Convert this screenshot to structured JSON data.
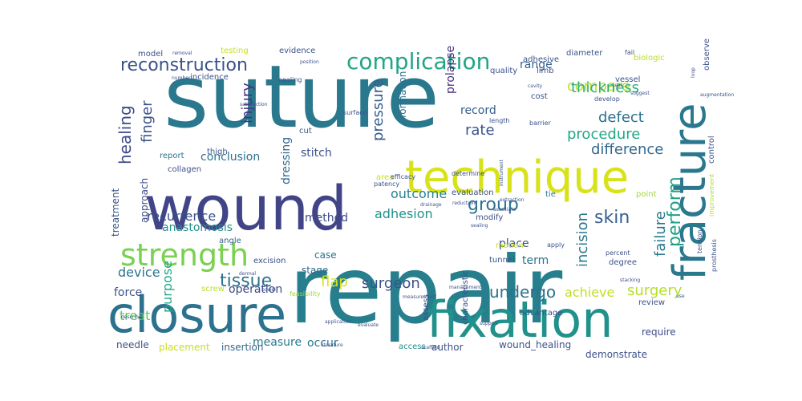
{
  "word_cloud": {
    "palette": [
      "#440154",
      "#46327e",
      "#365c8d",
      "#277f8e",
      "#1fa187",
      "#4ac16d",
      "#a0da39",
      "#fde725"
    ],
    "words": [
      {
        "text": "suture",
        "color": "#2a788e"
      },
      {
        "text": "repair",
        "color": "#277f8e"
      },
      {
        "text": "wound",
        "color": "#414487"
      },
      {
        "text": "closure",
        "color": "#2c728e"
      },
      {
        "text": "technique",
        "color": "#d8e219"
      },
      {
        "text": "fixation",
        "color": "#21918c"
      },
      {
        "text": "fracture",
        "color": "#2a788e"
      },
      {
        "text": "strength",
        "color": "#7ad151"
      },
      {
        "text": "complication",
        "color": "#21a685"
      },
      {
        "text": "reconstruction",
        "color": "#3b528b"
      },
      {
        "text": "tissue",
        "color": "#2c728e"
      },
      {
        "text": "healing",
        "color": "#3e4a89"
      },
      {
        "text": "finger",
        "color": "#3b528b"
      },
      {
        "text": "compare",
        "color": "#bddf26"
      },
      {
        "text": "thickness",
        "color": "#29af7f"
      },
      {
        "text": "defect",
        "color": "#2d708e"
      },
      {
        "text": "procedure",
        "color": "#22a884"
      },
      {
        "text": "difference",
        "color": "#31688e"
      },
      {
        "text": "rate",
        "color": "#3b528b"
      },
      {
        "text": "group",
        "color": "#2c728e"
      },
      {
        "text": "skin",
        "color": "#355f8d"
      },
      {
        "text": "perform",
        "color": "#1fa187"
      },
      {
        "text": "failure",
        "color": "#2a788e"
      },
      {
        "text": "incision",
        "color": "#2a788e"
      },
      {
        "text": "surgery",
        "color": "#b5de2b"
      },
      {
        "text": "undergo",
        "color": "#2c728e"
      },
      {
        "text": "achieve",
        "color": "#c2df23"
      },
      {
        "text": "flap",
        "color": "#d8e219"
      },
      {
        "text": "outcome",
        "color": "#26828e"
      },
      {
        "text": "adhesion",
        "color": "#20928c"
      },
      {
        "text": "recurrence",
        "color": "#3b528b"
      },
      {
        "text": "anastomosis",
        "color": "#21918c"
      },
      {
        "text": "method",
        "color": "#3e4a89"
      },
      {
        "text": "conclusion",
        "color": "#2c728e"
      },
      {
        "text": "stitch",
        "color": "#3b528b"
      },
      {
        "text": "dressing",
        "color": "#31688e"
      },
      {
        "text": "injury",
        "color": "#46327e"
      },
      {
        "text": "pressure",
        "color": "#365c8d"
      },
      {
        "text": "formation",
        "color": "#2d708e"
      },
      {
        "text": "prolapse",
        "color": "#472d7b"
      },
      {
        "text": "record",
        "color": "#355f8d"
      },
      {
        "text": "range",
        "color": "#355f8d"
      },
      {
        "text": "approach",
        "color": "#3e4a89"
      },
      {
        "text": "treatment",
        "color": "#3b528b"
      },
      {
        "text": "device",
        "color": "#2c728e"
      },
      {
        "text": "force",
        "color": "#3b528b"
      },
      {
        "text": "purpose",
        "color": "#22a884"
      },
      {
        "text": "treat",
        "color": "#5ec962"
      },
      {
        "text": "needle",
        "color": "#3b528b"
      },
      {
        "text": "placement",
        "color": "#c8e020"
      },
      {
        "text": "insertion",
        "color": "#31688e"
      },
      {
        "text": "measure",
        "color": "#2a788e"
      },
      {
        "text": "occur",
        "color": "#2a788e"
      },
      {
        "text": "author",
        "color": "#3b528b"
      },
      {
        "text": "wound_healing",
        "color": "#3b528b"
      },
      {
        "text": "demonstrate",
        "color": "#3b528b"
      },
      {
        "text": "require",
        "color": "#3e4a89"
      },
      {
        "text": "surgeon",
        "color": "#3b528b"
      },
      {
        "text": "operation",
        "color": "#3e4a89"
      },
      {
        "text": "case",
        "color": "#2c728e"
      },
      {
        "text": "stage",
        "color": "#31688e"
      },
      {
        "text": "term",
        "color": "#2c728e"
      },
      {
        "text": "place",
        "color": "#3b528b"
      },
      {
        "text": "model",
        "color": "#3b528b"
      },
      {
        "text": "testing",
        "color": "#c8e020"
      },
      {
        "text": "evidence",
        "color": "#3b528b"
      },
      {
        "text": "diameter",
        "color": "#3b528b"
      },
      {
        "text": "biologic",
        "color": "#b5de2b"
      },
      {
        "text": "quality",
        "color": "#3b528b"
      },
      {
        "text": "limb",
        "color": "#3b528b"
      },
      {
        "text": "incidence",
        "color": "#3b528b"
      },
      {
        "text": "thigh",
        "color": "#3b528b"
      },
      {
        "text": "collagen",
        "color": "#3b528b"
      },
      {
        "text": "report",
        "color": "#2c728e"
      },
      {
        "text": "angle",
        "color": "#355f8d"
      },
      {
        "text": "screw",
        "color": "#b5de2b"
      },
      {
        "text": "excision",
        "color": "#3b528b"
      },
      {
        "text": "tunnel",
        "color": "#3b528b"
      },
      {
        "text": "tension",
        "color": "#3b528b"
      },
      {
        "text": "degree",
        "color": "#3b528b"
      },
      {
        "text": "review",
        "color": "#3b528b"
      },
      {
        "text": "control",
        "color": "#3b528b"
      },
      {
        "text": "tie",
        "color": "#2a788e"
      },
      {
        "text": "point",
        "color": "#a0da39"
      },
      {
        "text": "modify",
        "color": "#3b528b"
      },
      {
        "text": "evaluation",
        "color": "#3b528b"
      },
      {
        "text": "area",
        "color": "#c8e020"
      },
      {
        "text": "cut",
        "color": "#3b528b"
      },
      {
        "text": "cost",
        "color": "#3b528b"
      },
      {
        "text": "vessel",
        "color": "#3b528b"
      },
      {
        "text": "adhesive",
        "color": "#3b528b"
      },
      {
        "text": "prosthesis",
        "color": "#3b528b"
      },
      {
        "text": "motion",
        "color": "#c8e020"
      },
      {
        "text": "length",
        "color": "#3b528b"
      },
      {
        "text": "determine",
        "color": "#3b528b"
      },
      {
        "text": "characteristic",
        "color": "#3b528b"
      },
      {
        "text": "assess",
        "color": "#3b528b"
      },
      {
        "text": "advantage",
        "color": "#3b528b"
      },
      {
        "text": "access",
        "color": "#21918c"
      },
      {
        "text": "apply",
        "color": "#3b528b"
      },
      {
        "text": "percent",
        "color": "#3b528b"
      },
      {
        "text": "feasibility",
        "color": "#a0da39"
      },
      {
        "text": "patency",
        "color": "#3b528b"
      },
      {
        "text": "efficacy",
        "color": "#3b528b"
      },
      {
        "text": "describe",
        "color": "#3b528b"
      },
      {
        "text": "literature",
        "color": "#3b528b"
      },
      {
        "text": "improvement",
        "color": "#b5de2b"
      },
      {
        "text": "observe",
        "color": "#3b528b"
      },
      {
        "text": "fail",
        "color": "#3b528b"
      },
      {
        "text": "develop",
        "color": "#3b528b"
      },
      {
        "text": "support",
        "color": "#3b528b"
      },
      {
        "text": "scaffold",
        "color": "#3b528b"
      },
      {
        "text": "management",
        "color": "#3b528b"
      },
      {
        "text": "measurement",
        "color": "#3b528b"
      },
      {
        "text": "drainage",
        "color": "#3b528b"
      },
      {
        "text": "reduction",
        "color": "#3b528b"
      },
      {
        "text": "healing",
        "color": "#3b528b"
      },
      {
        "text": "satisfaction",
        "color": "#3b528b"
      },
      {
        "text": "surface",
        "color": "#3b528b"
      },
      {
        "text": "barrier",
        "color": "#3b528b"
      },
      {
        "text": "position",
        "color": "#3b528b"
      },
      {
        "text": "removal",
        "color": "#3b528b"
      },
      {
        "text": "number",
        "color": "#3b528b"
      },
      {
        "text": "dermal",
        "color": "#3b528b"
      },
      {
        "text": "bowel",
        "color": "#3b528b"
      },
      {
        "text": "cavity",
        "color": "#3b528b"
      },
      {
        "text": "tear",
        "color": "#3b528b"
      },
      {
        "text": "suggest",
        "color": "#3b528b"
      },
      {
        "text": "loop",
        "color": "#3b528b"
      },
      {
        "text": "augmentation",
        "color": "#3b528b"
      },
      {
        "text": "stacking",
        "color": "#3b528b"
      },
      {
        "text": "use",
        "color": "#3b528b"
      },
      {
        "text": "sealing",
        "color": "#3b528b"
      },
      {
        "text": "associate",
        "color": "#3b528b"
      },
      {
        "text": "evaluate",
        "color": "#3b528b"
      },
      {
        "text": "application",
        "color": "#3b528b"
      },
      {
        "text": "extraction",
        "color": "#3b528b"
      },
      {
        "text": "instrument",
        "color": "#3b528b"
      },
      {
        "text": "absorb",
        "color": "#3b528b"
      }
    ]
  }
}
